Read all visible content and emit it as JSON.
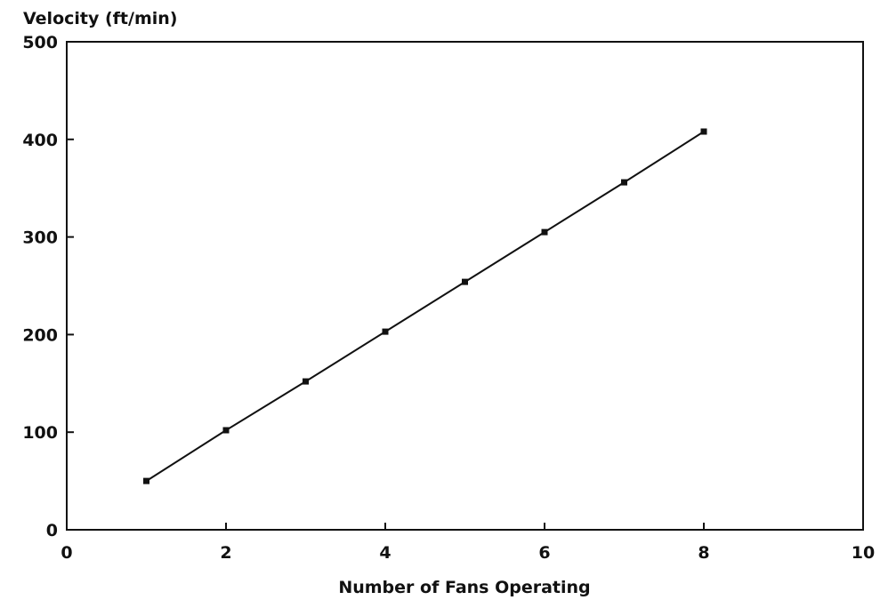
{
  "chart_data": {
    "type": "line",
    "ylabel": "Velocity (ft/min)",
    "xlabel": "Number of Fans Operating",
    "x": [
      1,
      2,
      3,
      4,
      5,
      6,
      7,
      8
    ],
    "values": [
      50,
      102,
      152,
      203,
      254,
      305,
      356,
      408
    ],
    "color": "#111111",
    "xlim": [
      0,
      10
    ],
    "xticks": [
      0,
      2,
      4,
      6,
      8,
      10
    ],
    "ylim": [
      0,
      500
    ],
    "yticks": [
      0,
      100,
      200,
      300,
      400,
      500
    ],
    "grid": false
  }
}
